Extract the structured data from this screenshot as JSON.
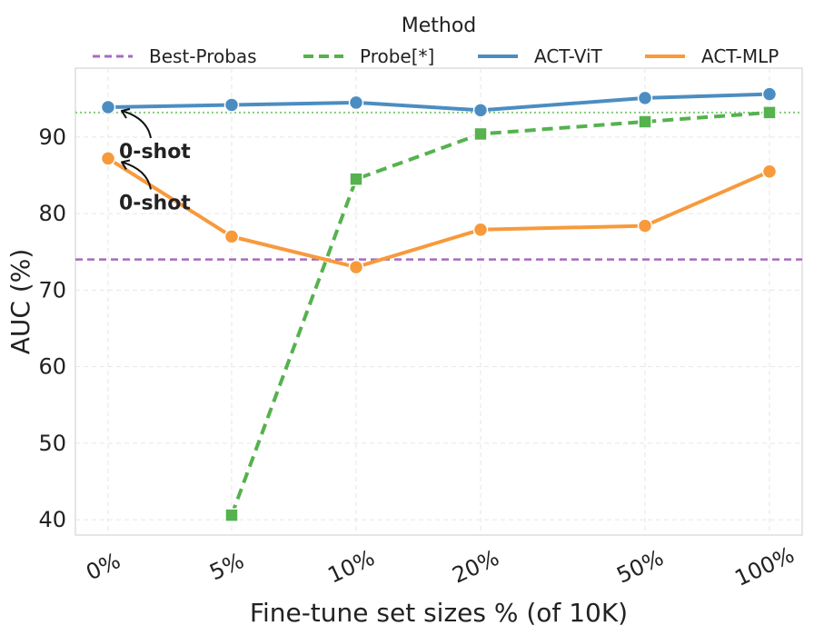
{
  "chart_data": {
    "type": "line",
    "xlabel": "Fine-tune set sizes % (of 10K)",
    "ylabel": "AUC (%)",
    "categories": [
      "0%",
      "5%",
      "10%",
      "20%",
      "50%",
      "100%"
    ],
    "yticks": [
      40,
      50,
      60,
      70,
      80,
      90
    ],
    "ylim": [
      38,
      99
    ],
    "grid": true,
    "legend": {
      "title": "Method",
      "position": "top",
      "entries": [
        "Best-Probas",
        "Probe[*]",
        "ACT-ViT",
        "ACT-MLP"
      ]
    },
    "series": [
      {
        "name": "ACT-ViT",
        "color": "#4c8dc1",
        "style": "solid",
        "marker": "circle",
        "values": [
          93.9,
          94.2,
          94.5,
          93.5,
          95.1,
          95.6
        ]
      },
      {
        "name": "ACT-MLP",
        "color": "#f79a3c",
        "style": "solid",
        "marker": "circle",
        "values": [
          87.2,
          77.0,
          73.0,
          77.9,
          78.4,
          85.5
        ]
      },
      {
        "name": "Probe[*]",
        "color": "#55b24e",
        "style": "dashed",
        "marker": "square",
        "values": [
          null,
          40.6,
          84.5,
          90.4,
          92.0,
          93.2
        ]
      }
    ],
    "reference_lines": [
      {
        "name": "Best-Probas",
        "value": 74.0,
        "color": "#a66bbf",
        "style": "dashed"
      },
      {
        "name": "Probe[*] max",
        "value": 93.2,
        "color": "#7fcf76",
        "style": "dotted"
      }
    ],
    "annotations": [
      {
        "text": "0-shot",
        "series": "ACT-ViT",
        "category": "0%"
      },
      {
        "text": "0-shot",
        "series": "ACT-MLP",
        "category": "0%"
      }
    ]
  }
}
